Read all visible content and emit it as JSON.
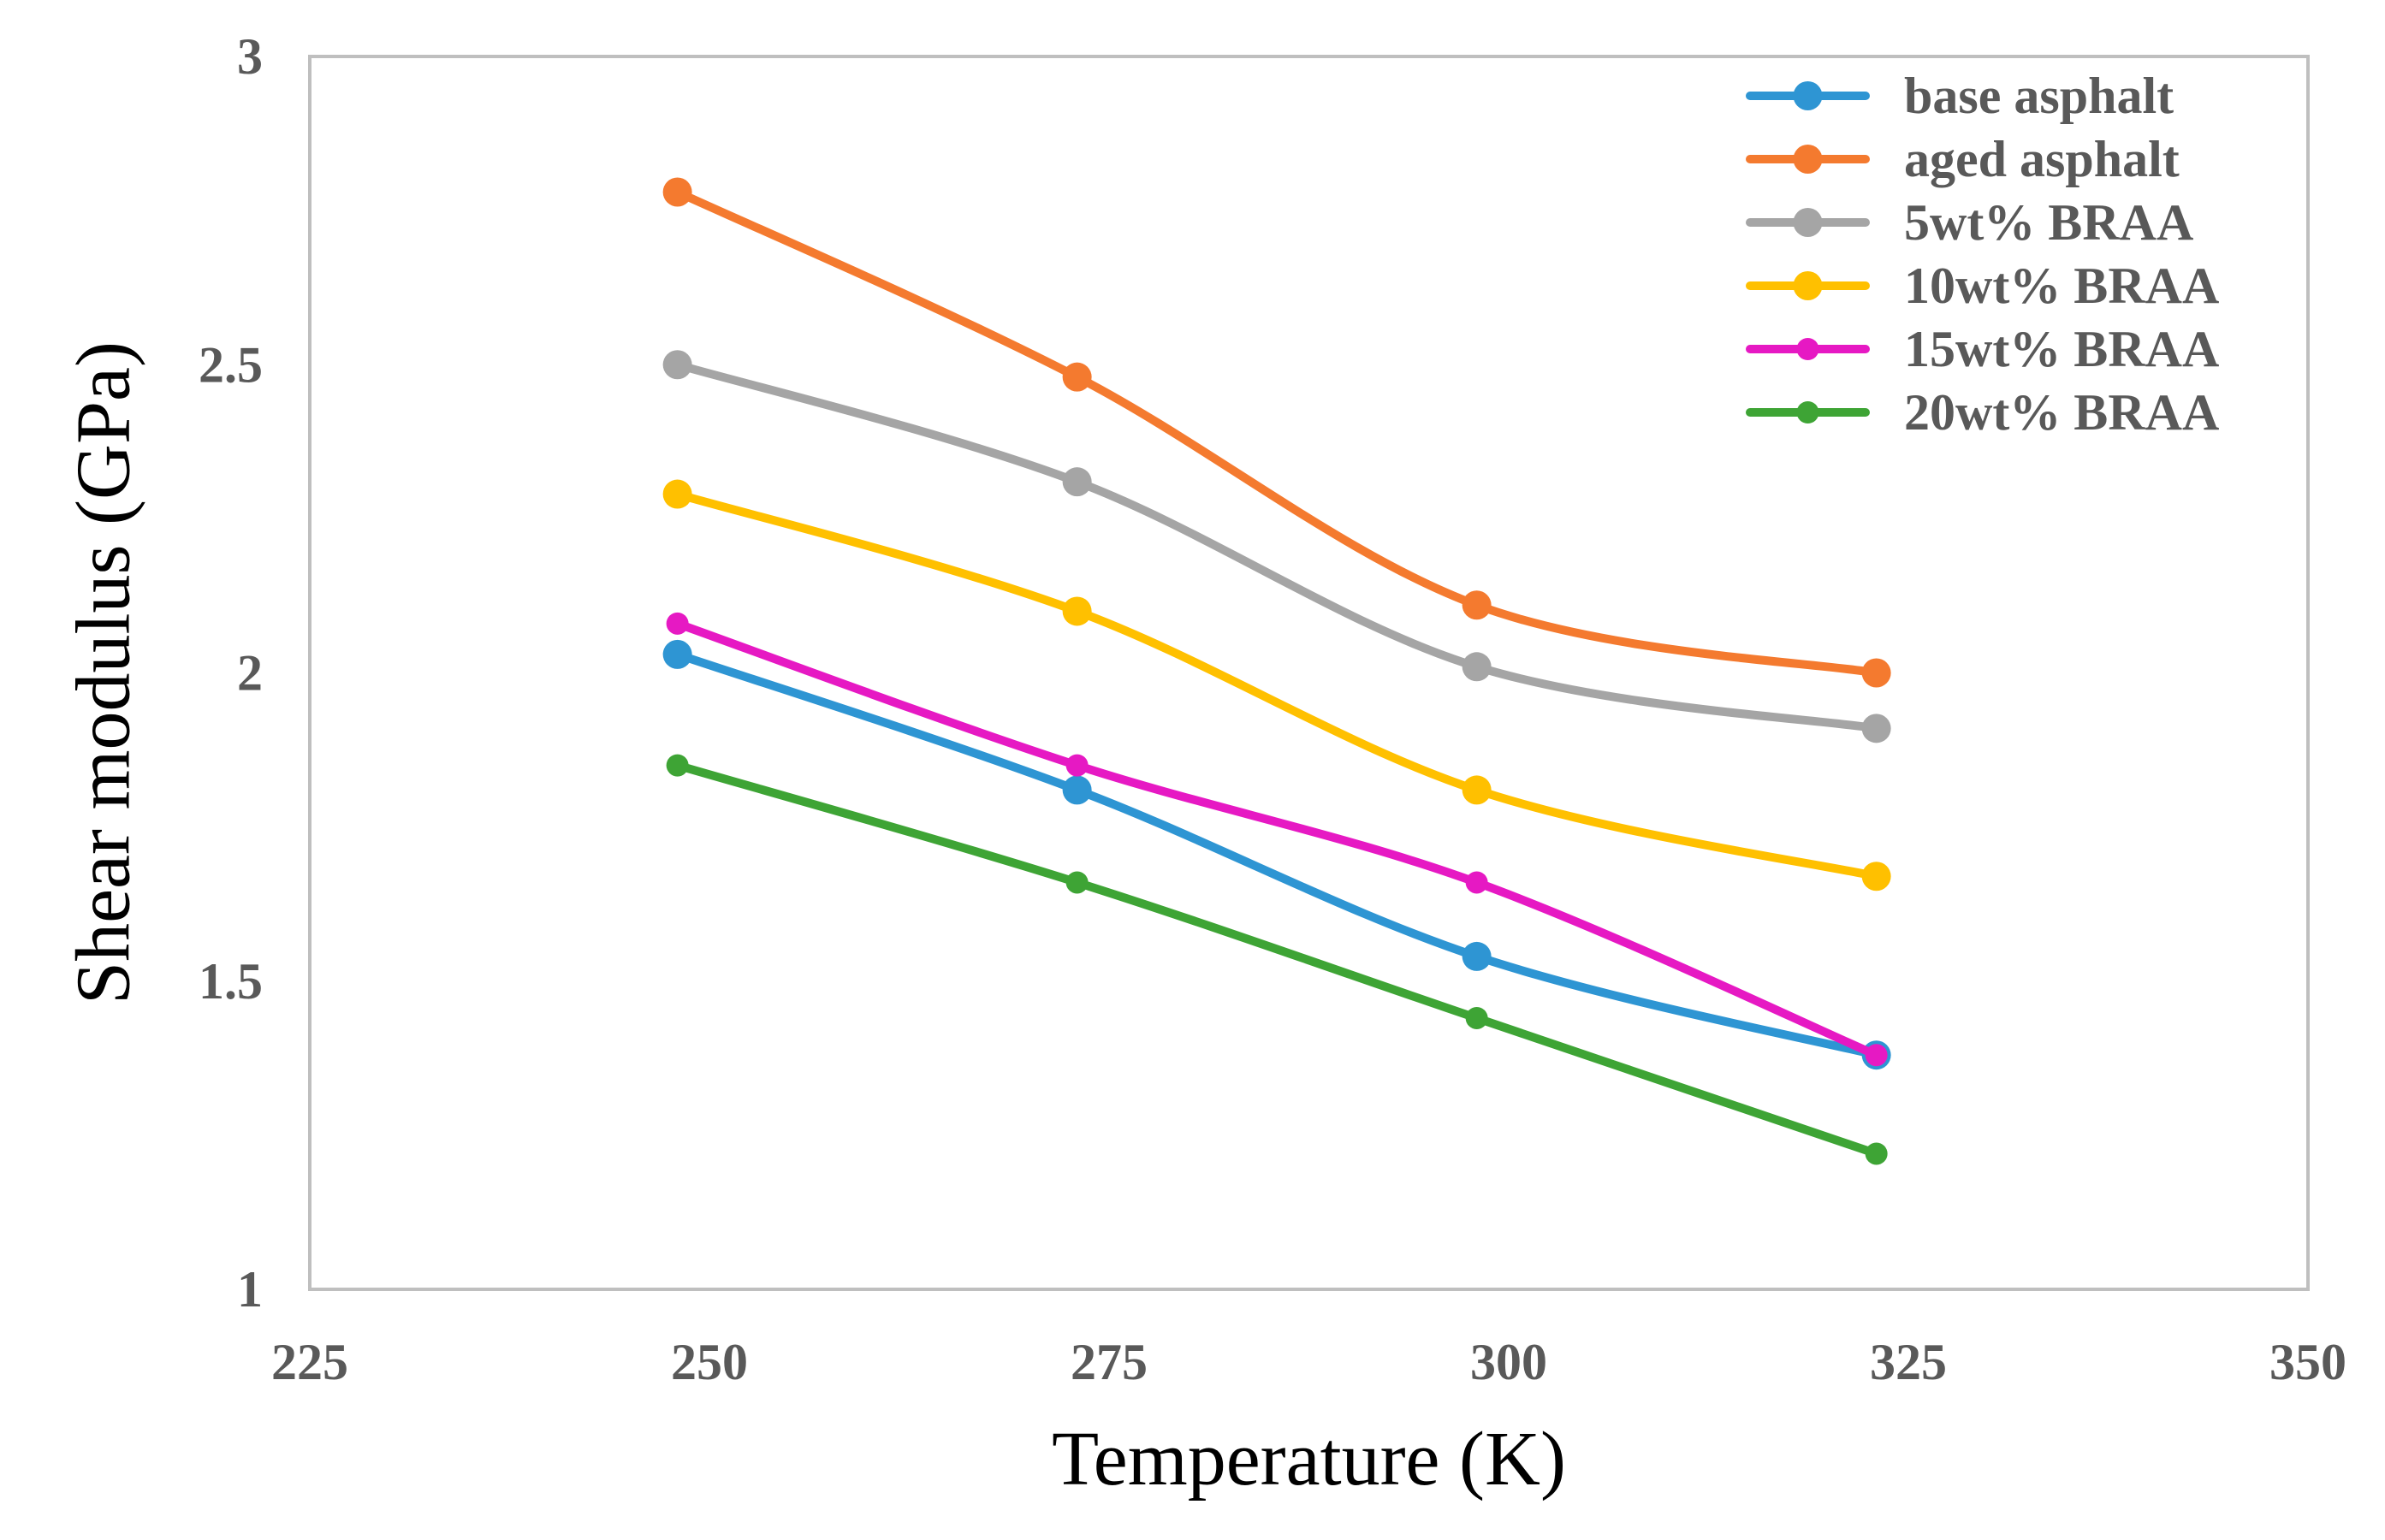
{
  "chart_data": {
    "type": "line",
    "title": "",
    "xlabel": "Temperature (K)",
    "ylabel": "Shear modulus (GPa)",
    "xlim": [
      225,
      350
    ],
    "ylim": [
      1,
      3
    ],
    "xticks": [
      225,
      250,
      275,
      300,
      325,
      350
    ],
    "yticks": [
      1,
      1.5,
      2,
      2.5,
      3
    ],
    "x_tick_labels": [
      "225",
      "250",
      "275",
      "300",
      "325",
      "350"
    ],
    "y_tick_labels": [
      "1",
      "1.5",
      "2",
      "2.5",
      "3"
    ],
    "grid": false,
    "legend_position": "top-right",
    "x": [
      248,
      273,
      298,
      323
    ],
    "series": [
      {
        "name": "base asphalt",
        "values": [
          2.03,
          1.81,
          1.54,
          1.38
        ],
        "color": "#2E95D3",
        "marker": "large"
      },
      {
        "name": "aged asphalt",
        "values": [
          2.78,
          2.48,
          2.11,
          2.0
        ],
        "color": "#F47A2F",
        "marker": "large"
      },
      {
        "name": "5wt% BRAA",
        "values": [
          2.5,
          2.31,
          2.01,
          1.91
        ],
        "color": "#A5A5A5",
        "marker": "large"
      },
      {
        "name": "10wt% BRAA",
        "values": [
          2.29,
          2.1,
          1.81,
          1.67
        ],
        "color": "#FFC000",
        "marker": "large"
      },
      {
        "name": "15wt% BRAA",
        "values": [
          2.08,
          1.85,
          1.66,
          1.38
        ],
        "color": "#E619C3",
        "marker": "small"
      },
      {
        "name": "20wt% BRAA",
        "values": [
          1.85,
          1.66,
          1.44,
          1.22
        ],
        "color": "#3EA435",
        "marker": "small"
      }
    ]
  }
}
